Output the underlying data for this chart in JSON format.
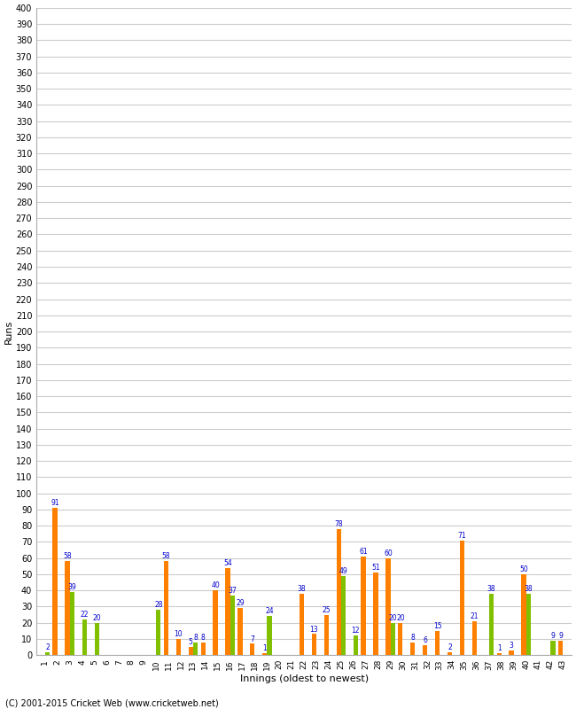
{
  "xlabel": "Innings (oldest to newest)",
  "ylabel": "Runs",
  "innings": [
    1,
    2,
    3,
    4,
    5,
    6,
    7,
    8,
    9,
    10,
    11,
    12,
    13,
    14,
    15,
    16,
    17,
    18,
    19,
    20,
    21,
    22,
    23,
    24,
    25,
    26,
    27,
    28,
    29,
    30,
    31,
    32,
    33,
    34,
    35,
    36,
    37,
    38,
    39,
    40,
    41,
    42,
    43
  ],
  "orange_bars": [
    0,
    91,
    58,
    0,
    0,
    0,
    0,
    0,
    0,
    0,
    58,
    10,
    5,
    8,
    40,
    54,
    29,
    7,
    1,
    0,
    0,
    38,
    13,
    25,
    78,
    0,
    61,
    51,
    60,
    20,
    8,
    6,
    15,
    2,
    71,
    21,
    0,
    1,
    3,
    50,
    0,
    0,
    9
  ],
  "green_bars": [
    2,
    0,
    39,
    22,
    20,
    0,
    0,
    0,
    0,
    28,
    0,
    0,
    8,
    0,
    0,
    37,
    0,
    0,
    24,
    0,
    0,
    0,
    0,
    0,
    49,
    12,
    0,
    0,
    20,
    0,
    0,
    0,
    0,
    0,
    0,
    0,
    38,
    0,
    0,
    38,
    0,
    9,
    0
  ],
  "orange_color": "#ff8000",
  "green_color": "#80c000",
  "label_color": "#0000cc",
  "background_color": "#ffffff",
  "grid_color": "#cccccc",
  "ytick_step": 10,
  "ymax": 400,
  "figsize": [
    6.5,
    8.0
  ],
  "dpi": 100,
  "footer": "(C) 2001-2015 Cricket Web (www.cricketweb.net)"
}
